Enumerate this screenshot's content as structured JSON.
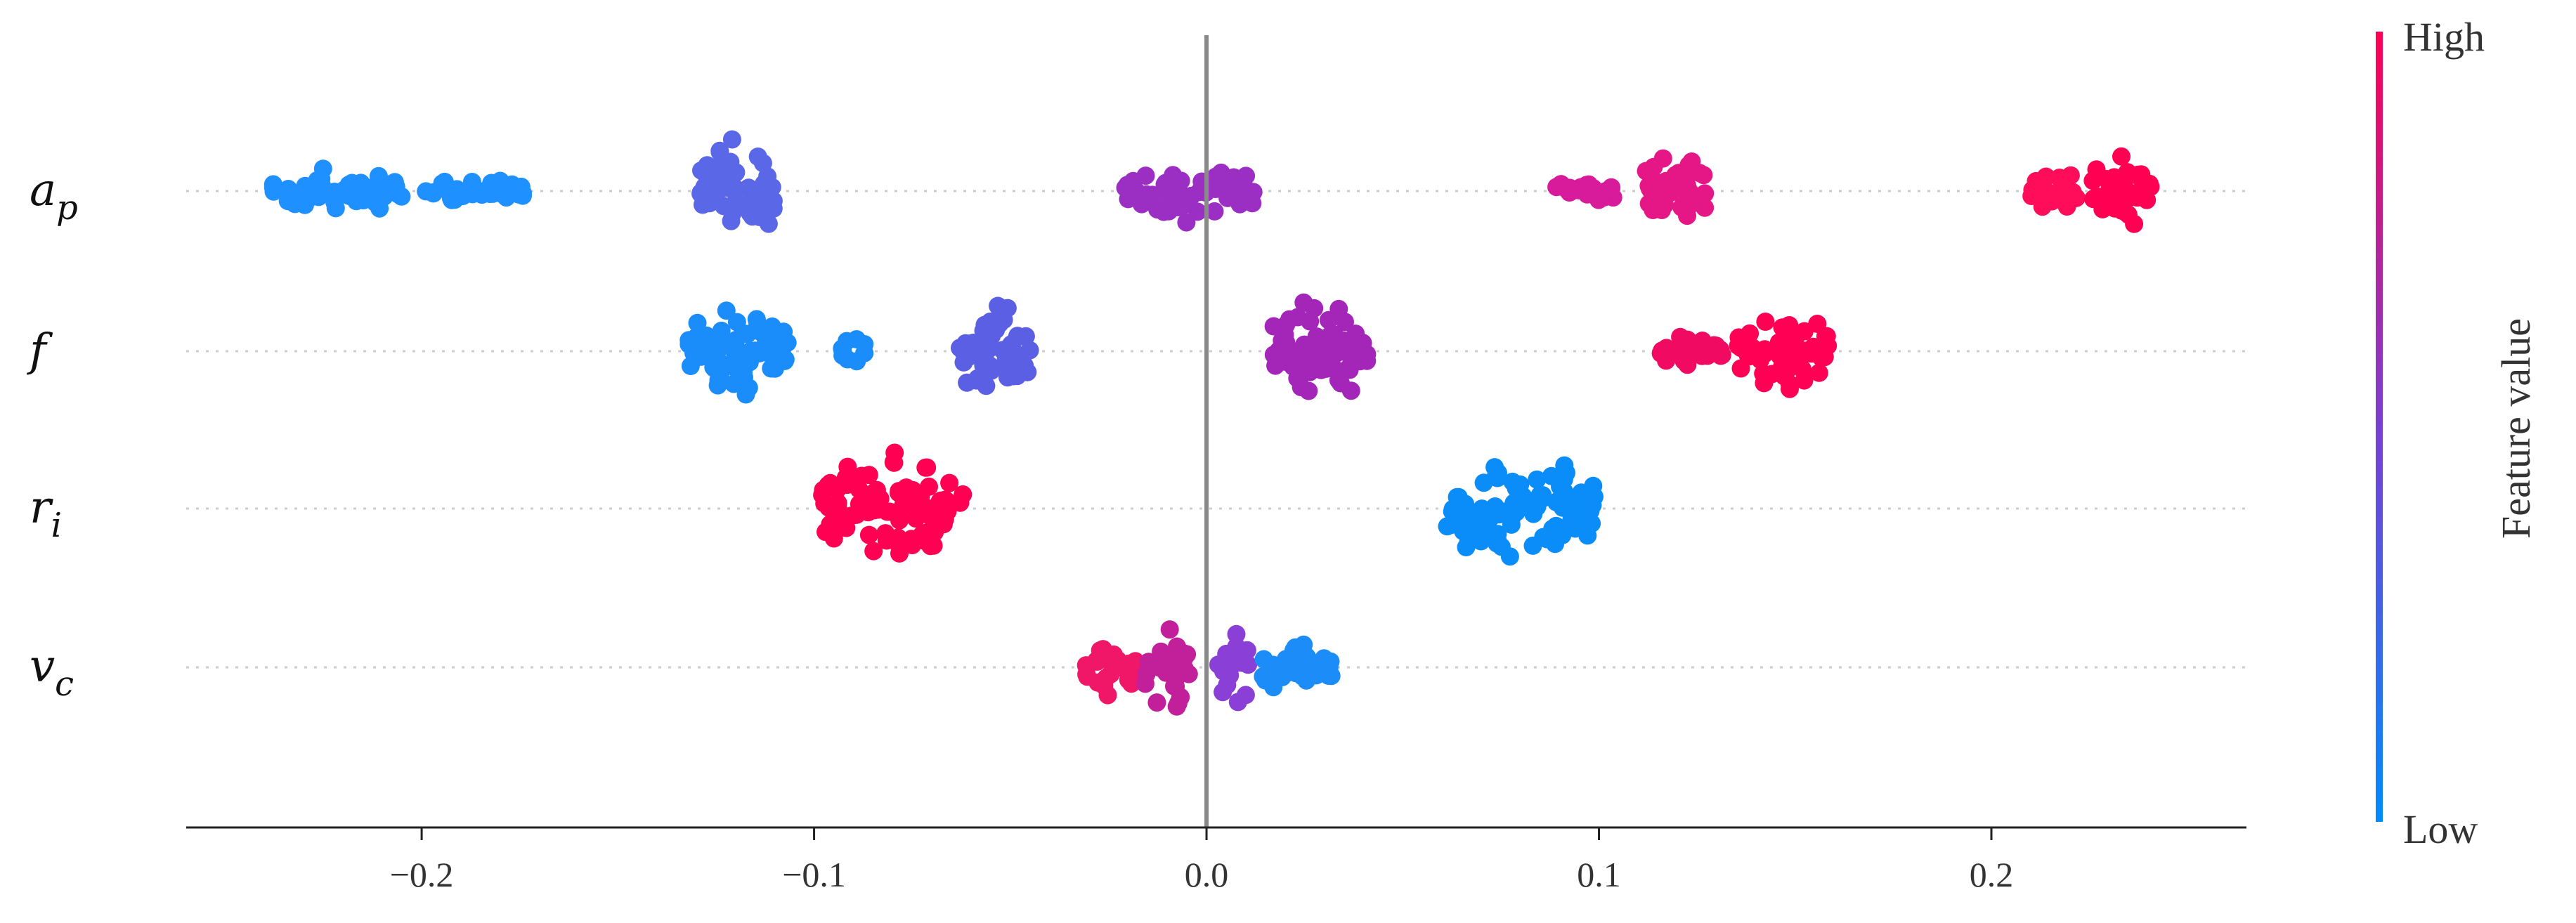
{
  "chart_data": {
    "type": "scatter",
    "subtype": "shap-beeswarm",
    "xlim": [
      -0.26,
      0.265
    ],
    "x_ticks": [
      -0.2,
      -0.1,
      0.0,
      0.1,
      0.2
    ],
    "x_tick_labels": [
      "−0.2",
      "−0.1",
      "0.0",
      "0.1",
      "0.2"
    ],
    "xlabel": "",
    "colorbar": {
      "label": "Feature value",
      "high_label": "High",
      "low_label": "Low",
      "high_color": "#ff0052",
      "low_color": "#008bfb"
    },
    "features": [
      {
        "base": "a",
        "sub": "p",
        "clusters": [
          {
            "x_min": -0.238,
            "x_max": -0.205,
            "spread": 0.5,
            "color": "#1e90ff"
          },
          {
            "x_min": -0.2,
            "x_max": -0.174,
            "spread": 0.25,
            "color": "#1e90ff"
          },
          {
            "x_min": -0.129,
            "x_max": -0.11,
            "spread": 1.0,
            "color": "#5a67e6"
          },
          {
            "x_min": -0.021,
            "x_max": 0.012,
            "spread": 0.55,
            "color": "#9c2fc3"
          },
          {
            "x_min": 0.089,
            "x_max": 0.105,
            "spread": 0.25,
            "color": "#d81b9a"
          },
          {
            "x_min": 0.112,
            "x_max": 0.128,
            "spread": 0.7,
            "color": "#e51786"
          },
          {
            "x_min": 0.21,
            "x_max": 0.222,
            "spread": 0.4,
            "color": "#ff0d5a"
          },
          {
            "x_min": 0.225,
            "x_max": 0.241,
            "spread": 0.75,
            "color": "#ff0052"
          }
        ]
      },
      {
        "base": "f",
        "sub": "",
        "clusters": [
          {
            "x_min": -0.132,
            "x_max": -0.106,
            "spread": 0.9,
            "color": "#1a8dfa"
          },
          {
            "x_min": -0.093,
            "x_max": -0.086,
            "spread": 0.25,
            "color": "#1a8dfa"
          },
          {
            "x_min": -0.064,
            "x_max": -0.045,
            "spread": 0.95,
            "color": "#5b5fe4"
          },
          {
            "x_min": 0.017,
            "x_max": 0.041,
            "spread": 1.0,
            "color": "#a326b8"
          },
          {
            "x_min": 0.115,
            "x_max": 0.132,
            "spread": 0.3,
            "color": "#f00a62"
          },
          {
            "x_min": 0.135,
            "x_max": 0.159,
            "spread": 0.75,
            "color": "#ff0055"
          }
        ]
      },
      {
        "base": "r",
        "sub": "i",
        "clusters": [
          {
            "x_min": -0.098,
            "x_max": -0.062,
            "spread": 1.0,
            "color": "#ff0052"
          },
          {
            "x_min": 0.061,
            "x_max": 0.099,
            "spread": 1.0,
            "color": "#0a8df9"
          }
        ]
      },
      {
        "base": "v",
        "sub": "c",
        "clusters": [
          {
            "x_min": -0.032,
            "x_max": -0.017,
            "spread": 0.55,
            "color": "#f01668"
          },
          {
            "x_min": -0.016,
            "x_max": -0.004,
            "spread": 0.8,
            "color": "#c21f9a"
          },
          {
            "x_min": 0.003,
            "x_max": 0.011,
            "spread": 0.8,
            "color": "#8a40d6"
          },
          {
            "x_min": 0.012,
            "x_max": 0.032,
            "spread": 0.45,
            "color": "#1c8cf8"
          }
        ]
      }
    ]
  }
}
